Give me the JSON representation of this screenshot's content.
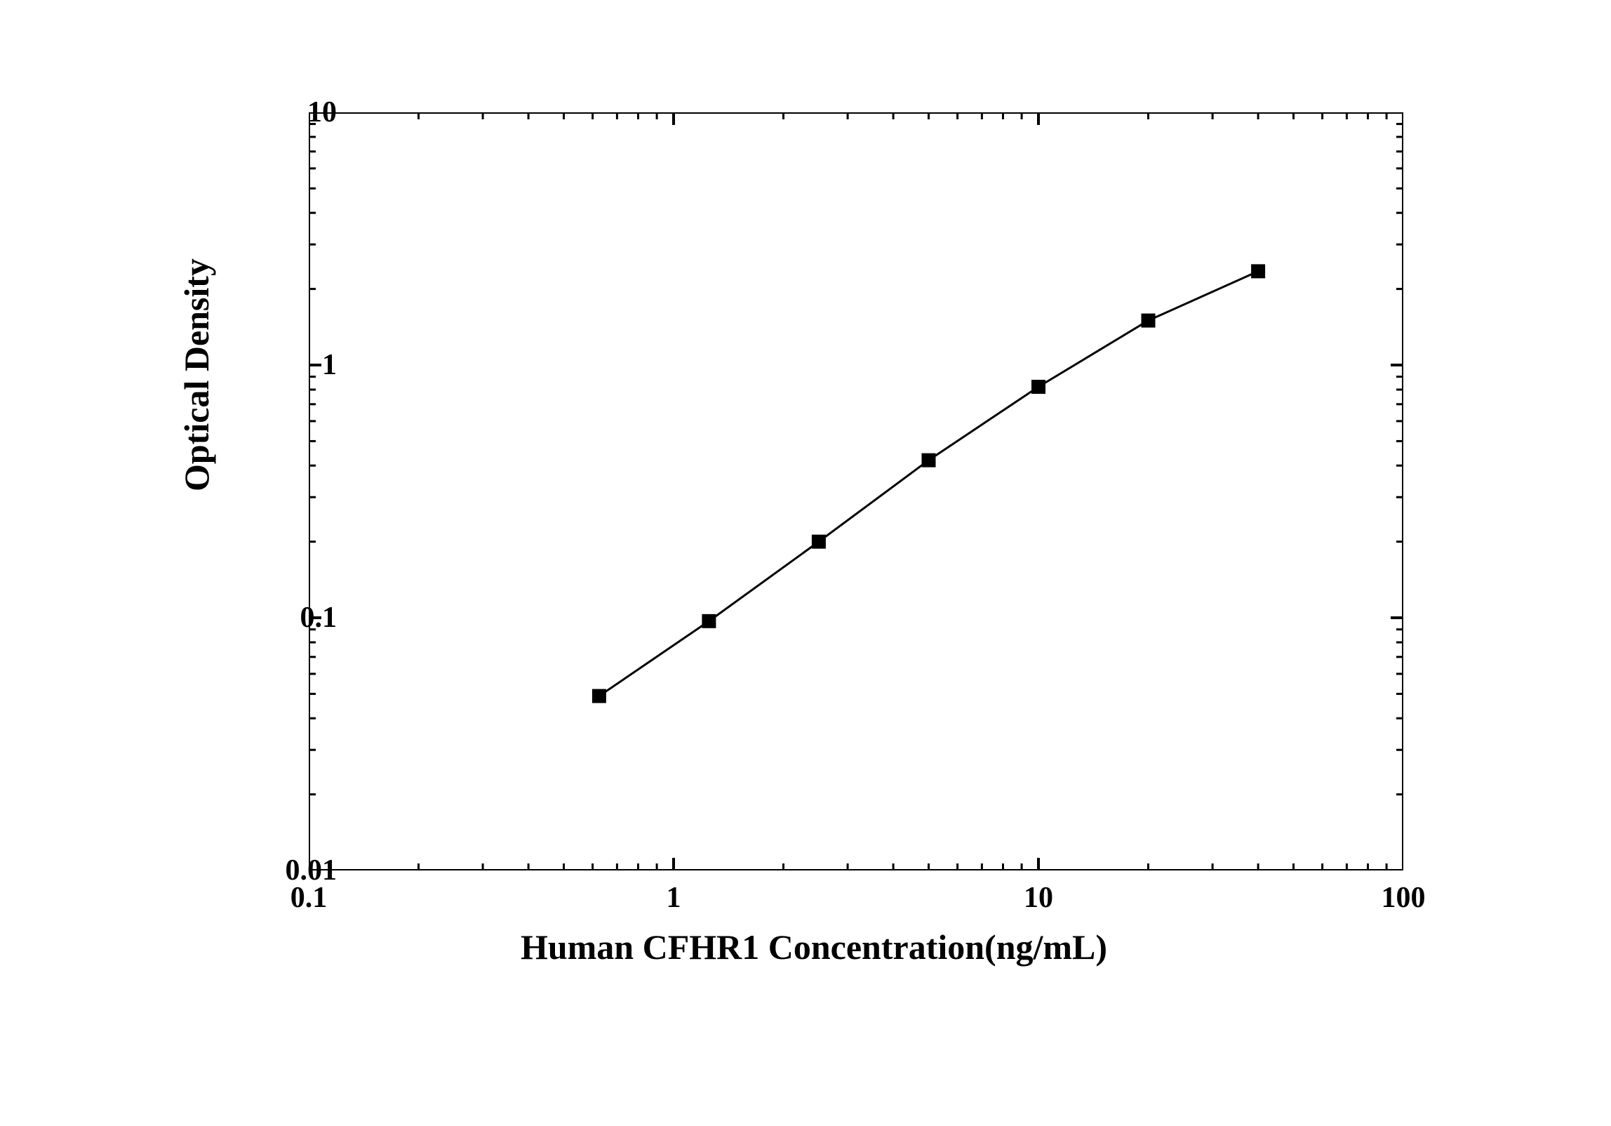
{
  "chart": {
    "type": "line",
    "x_scale": "log",
    "y_scale": "log",
    "xlim": [
      0.1,
      100
    ],
    "ylim": [
      0.01,
      10
    ],
    "x_ticks": [
      0.1,
      1,
      10,
      100
    ],
    "y_ticks": [
      0.01,
      0.1,
      1,
      10
    ],
    "x_tick_labels": [
      "0.1",
      "1",
      "10",
      "100"
    ],
    "y_tick_labels": [
      "0.01",
      "0.1",
      "1",
      "10"
    ],
    "x_axis_title": "Human CFHR1 Concentration(ng/mL)",
    "y_axis_title": "Optical Density",
    "data_points": [
      {
        "x": 0.625,
        "y": 0.049
      },
      {
        "x": 1.25,
        "y": 0.097
      },
      {
        "x": 2.5,
        "y": 0.2
      },
      {
        "x": 5.0,
        "y": 0.42
      },
      {
        "x": 10.0,
        "y": 0.82
      },
      {
        "x": 20.0,
        "y": 1.5
      },
      {
        "x": 40.0,
        "y": 2.35
      }
    ],
    "marker_style": "square",
    "marker_size": 20,
    "marker_color": "#000000",
    "line_color": "#000000",
    "line_width": 3,
    "background_color": "#ffffff",
    "axis_color": "#000000",
    "axis_width": 4,
    "tick_length_major": 18,
    "tick_length_minor": 10,
    "title_fontsize": 50,
    "tick_fontsize": 42,
    "font_weight": "bold",
    "font_family": "Times New Roman"
  }
}
